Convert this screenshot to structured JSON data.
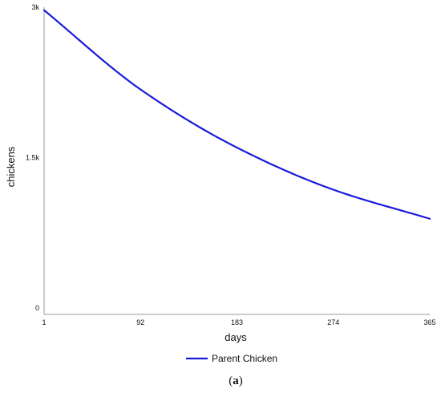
{
  "chart_data": {
    "type": "line",
    "xlabel": "days",
    "ylabel": "chickens",
    "x_ticks": [
      1,
      92,
      183,
      274,
      365
    ],
    "x_tick_labels": [
      "1",
      "92",
      "183",
      "274",
      "365"
    ],
    "y_ticks": [
      0,
      1500,
      3000
    ],
    "y_tick_labels": [
      "0",
      "1.5k",
      "3k"
    ],
    "xlim": [
      1,
      365
    ],
    "ylim": [
      0,
      3000
    ],
    "grid": false,
    "legend_position": "bottom-center",
    "series": [
      {
        "name": "Parent Chicken",
        "color": "#1a1adb",
        "x": [
          1,
          92,
          183,
          274,
          365
        ],
        "y": [
          2970,
          2180,
          1600,
          1180,
          890
        ]
      }
    ],
    "caption": {
      "open": "(",
      "letter": "a",
      "close": ")"
    }
  }
}
